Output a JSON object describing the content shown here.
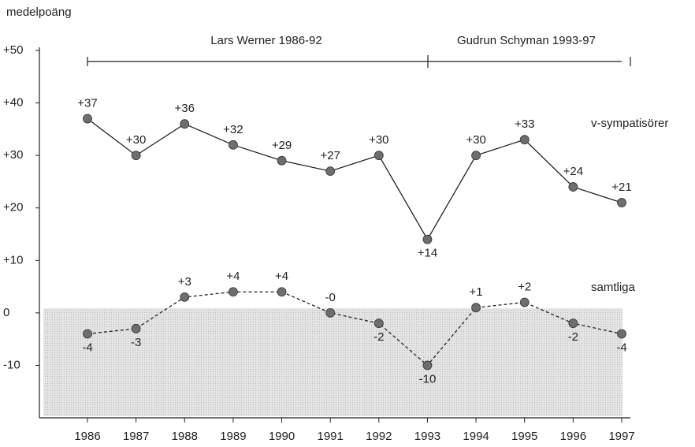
{
  "chart_data": {
    "type": "line",
    "y_label": "medelpoäng",
    "annotations": [
      "Lars Werner 1986-92",
      "Gudrun Schyman 1993-97"
    ],
    "categories": [
      "1986",
      "1987",
      "1988",
      "1989",
      "1990",
      "1991",
      "1992",
      "1993",
      "1994",
      "1995",
      "1996",
      "1997"
    ],
    "series": [
      {
        "name": "v-sympatisörer",
        "color": "#222222",
        "marker_color": "#6e6e6e",
        "style": "solid",
        "values": [
          37,
          30,
          36,
          32,
          29,
          27,
          30,
          14,
          30,
          33,
          24,
          21
        ],
        "value_labels": [
          "+37",
          "+30",
          "+36",
          "+32",
          "+29",
          "+27",
          "+30",
          "+14",
          "+30",
          "+33",
          "+24",
          "+21"
        ]
      },
      {
        "name": "samtliga",
        "color": "#222222",
        "marker_color": "#6e6e6e",
        "style": "dashed",
        "values": [
          -4,
          -3,
          3,
          4,
          4,
          0,
          -2,
          -10,
          1,
          2,
          -2,
          -4
        ],
        "value_labels": [
          "-4",
          "-3",
          "+3",
          "+4",
          "+4",
          "-0",
          "-2",
          "-10",
          "+1",
          "+2",
          "-2",
          "-4"
        ]
      }
    ],
    "ylim": [
      -20,
      50
    ],
    "yticks": [
      {
        "value": 50,
        "label": "+50"
      },
      {
        "value": 40,
        "label": "+40"
      },
      {
        "value": 30,
        "label": "+30"
      },
      {
        "value": 20,
        "label": "+20"
      },
      {
        "value": 10,
        "label": "+10"
      },
      0,
      -10
    ]
  }
}
